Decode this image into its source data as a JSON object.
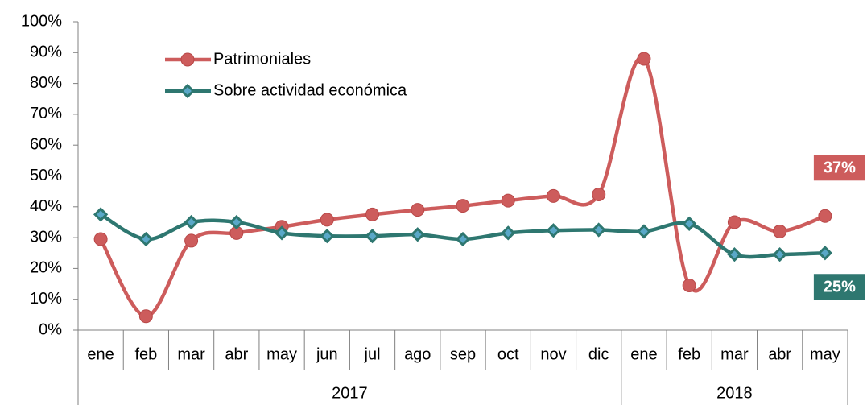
{
  "chart_data": {
    "type": "line",
    "smooth": true,
    "category_groups": [
      {
        "name": "2017",
        "categories": [
          "ene",
          "feb",
          "mar",
          "abr",
          "may",
          "jun",
          "jul",
          "ago",
          "sep",
          "oct",
          "nov",
          "dic"
        ]
      },
      {
        "name": "2018",
        "categories": [
          "ene",
          "feb",
          "mar",
          "abr",
          "may"
        ]
      }
    ],
    "series": [
      {
        "name": "Patrimoniales",
        "color": "#cd5c5c",
        "marker": "circle",
        "values": [
          29.5,
          4.5,
          29,
          31.5,
          33.5,
          35.8,
          37.5,
          39,
          40.3,
          42,
          43.5,
          44,
          88,
          14.5,
          35,
          32,
          37
        ],
        "value_labels": [
          null,
          null,
          null,
          null,
          null,
          null,
          null,
          null,
          null,
          null,
          null,
          null,
          null,
          null,
          null,
          null,
          "37%"
        ]
      },
      {
        "name": "Sobre actividad económica",
        "color": "#2e7770",
        "marker": "diamond",
        "values": [
          37.5,
          29.5,
          35,
          35,
          31.5,
          30.5,
          30.5,
          31,
          29.5,
          31.5,
          32.3,
          32.5,
          32,
          34.5,
          24.5,
          24.5,
          25
        ],
        "value_labels": [
          null,
          null,
          null,
          null,
          null,
          null,
          null,
          null,
          null,
          null,
          null,
          null,
          null,
          null,
          null,
          null,
          "25%"
        ]
      }
    ],
    "ylim": [
      0,
      100
    ],
    "yticks": [
      {
        "value": 0,
        "label": "0%"
      },
      {
        "value": 10,
        "label": "10%"
      },
      {
        "value": 20,
        "label": "20%"
      },
      {
        "value": 30,
        "label": "30%"
      },
      {
        "value": 40,
        "label": "40%"
      },
      {
        "value": 50,
        "label": "50%"
      },
      {
        "value": 60,
        "label": "60%"
      },
      {
        "value": 70,
        "label": "70%"
      },
      {
        "value": 80,
        "label": "80%"
      },
      {
        "value": 90,
        "label": "90%"
      },
      {
        "value": 100,
        "label": "100%"
      }
    ],
    "legend": "top-left",
    "grid": false
  }
}
